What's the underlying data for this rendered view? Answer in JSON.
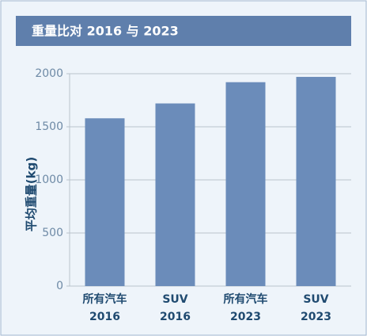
{
  "chart_data": {
    "type": "bar",
    "title": "重量比对 2016 与 2023",
    "y_label": "平均重量(kg)",
    "categories": [
      "所有汽车\n2016",
      "SUV\n2016",
      "所有汽车\n2023",
      "SUV\n2023"
    ],
    "values": [
      1580,
      1720,
      1920,
      1970
    ],
    "color": "#6b8cba",
    "ylim": [
      0,
      2000
    ],
    "yticks": [
      0,
      500,
      1000,
      1500,
      2000
    ],
    "grid": true
  }
}
